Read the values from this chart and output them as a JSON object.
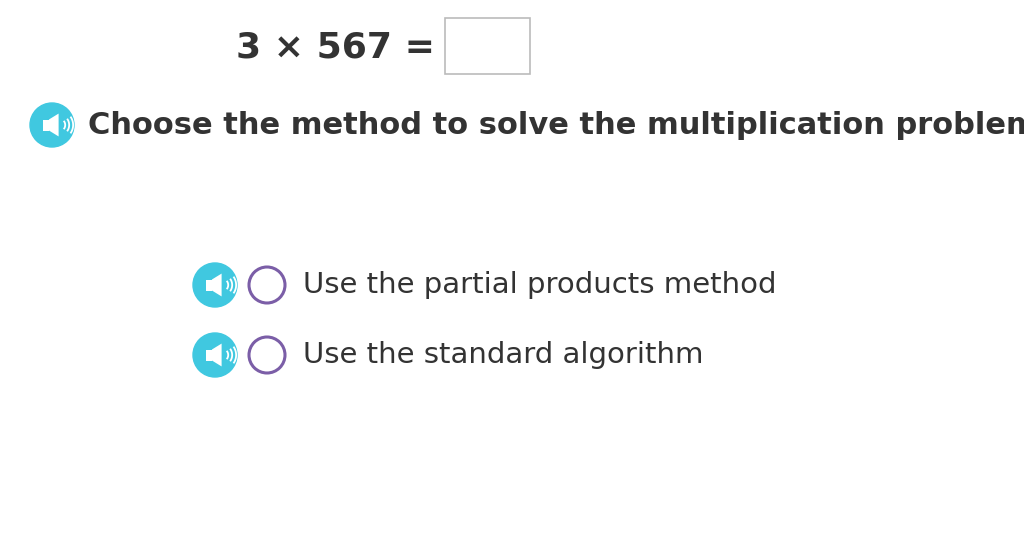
{
  "background_color": "#ffffff",
  "equation_text": "3 × 567 =",
  "equation_fontsize": 26,
  "box_color": "#ffffff",
  "box_border_color": "#bbbbbb",
  "instruction_text": "Choose the method to solve the multiplication problem",
  "instruction_fontsize": 22,
  "text_color": "#333333",
  "speaker_color": "#40c8e0",
  "speaker_icon_color": "#ffffff",
  "radio_color": "#7b5ea7",
  "option1_text": "Use the partial products method",
  "option2_text": "Use the standard algorithm",
  "option_fontsize": 21
}
